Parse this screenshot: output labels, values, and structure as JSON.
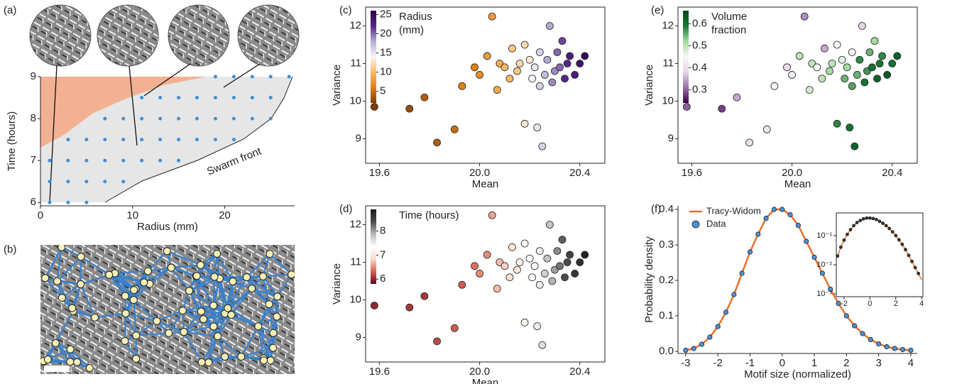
{
  "panel_labels": [
    "(a)",
    "(b)",
    "(c)",
    "(d)",
    "(e)",
    "(f)"
  ],
  "chart_data": [
    {
      "type": "scatter",
      "xlabel": "Radius (mm)",
      "ylabel": "Time (hours)",
      "annotation": "Swarm front",
      "xlim": [
        0,
        27.6
      ],
      "ylim": [
        5.92,
        9.0
      ],
      "xticks": [
        0,
        10,
        20
      ],
      "yticks": [
        6,
        7,
        8,
        9
      ],
      "color": "#3f8fd6",
      "x": [
        1,
        3,
        5,
        1,
        3,
        5,
        7,
        9,
        1,
        3,
        5,
        7,
        9,
        11,
        13,
        15,
        3,
        5,
        7,
        9,
        11,
        13,
        15,
        17,
        19,
        21,
        7,
        9,
        11,
        13,
        15,
        17,
        19,
        21,
        23,
        25,
        11,
        13,
        15,
        17,
        19,
        21,
        23,
        25,
        19,
        21,
        23,
        25,
        27
      ],
      "values": [
        6,
        6,
        6,
        6.5,
        6.5,
        6.5,
        6.5,
        6.5,
        7,
        7,
        7,
        7,
        7,
        7,
        7,
        7,
        7.5,
        7.5,
        7.5,
        7.5,
        7.5,
        7.5,
        7.5,
        7.5,
        7.5,
        7.5,
        8,
        8,
        8,
        8,
        8,
        8,
        8,
        8,
        8,
        8,
        8.5,
        8.5,
        8.5,
        8.5,
        8.5,
        8.5,
        8.5,
        8.5,
        9,
        9,
        9,
        9,
        9
      ]
    },
    {
      "type": "scatter",
      "xlabel": "Mean",
      "ylabel": "Variance",
      "xlim": [
        19.545,
        20.5
      ],
      "ylim": [
        8.35,
        12.5
      ],
      "xticks": [
        19.6,
        {
          "value": 20,
          "label": "20.0"
        },
        20.4
      ],
      "yticks": [
        9,
        10,
        11,
        12
      ],
      "x": [
        19.58,
        19.72,
        19.78,
        19.83,
        19.9,
        19.93,
        19.98,
        20.0,
        20.03,
        20.05,
        20.07,
        20.08,
        20.1,
        20.12,
        20.13,
        20.15,
        20.16,
        20.18,
        20.2,
        20.21,
        20.22,
        20.23,
        20.24,
        20.25,
        20.26,
        20.27,
        20.28,
        20.29,
        20.3,
        20.31,
        20.32,
        20.33,
        20.34,
        20.35,
        20.36,
        20.38,
        20.4,
        20.42,
        20.18,
        20.24
      ],
      "values": [
        9.85,
        9.8,
        10.1,
        8.9,
        9.25,
        10.4,
        10.9,
        10.7,
        11.2,
        12.25,
        10.3,
        11.0,
        10.9,
        10.6,
        11.4,
        10.8,
        11.0,
        9.4,
        11.1,
        10.6,
        10.9,
        9.3,
        11.3,
        8.8,
        10.7,
        11.1,
        12.0,
        10.5,
        10.8,
        11.3,
        10.9,
        11.6,
        10.6,
        11.0,
        11.2,
        10.7,
        11.0,
        11.2,
        11.5,
        10.4
      ],
      "color_values": [
        2,
        3,
        4,
        4,
        5,
        6,
        6,
        7,
        8,
        8,
        9,
        9,
        10,
        10,
        11,
        11,
        12,
        13,
        13,
        14,
        15,
        15,
        16,
        16,
        17,
        18,
        18,
        19,
        19,
        20,
        20,
        21,
        22,
        22,
        23,
        23,
        24,
        25,
        12,
        16
      ],
      "colormap": [
        "#7f3b08",
        "#e08214",
        "#fdb863",
        "#f7f7f7",
        "#b2abd2",
        "#542788",
        "#2d004b"
      ],
      "clim": [
        2,
        26
      ],
      "colorbar_ticks": [
        5,
        10,
        15,
        20,
        25
      ],
      "colorbar_label": [
        "Radius",
        "(mm)"
      ]
    },
    {
      "type": "scatter",
      "xlabel": "Mean",
      "ylabel": "Variance",
      "xlim": [
        19.545,
        20.5
      ],
      "ylim": [
        8.35,
        12.5
      ],
      "xticks": [
        19.6,
        {
          "value": 20,
          "label": "20.0"
        },
        20.4
      ],
      "yticks": [
        9,
        10,
        11,
        12
      ],
      "x": [
        19.58,
        19.72,
        19.78,
        19.83,
        19.9,
        19.93,
        19.98,
        20.0,
        20.03,
        20.05,
        20.07,
        20.08,
        20.1,
        20.12,
        20.13,
        20.15,
        20.16,
        20.18,
        20.2,
        20.21,
        20.22,
        20.23,
        20.24,
        20.25,
        20.26,
        20.27,
        20.28,
        20.29,
        20.3,
        20.31,
        20.32,
        20.33,
        20.34,
        20.35,
        20.36,
        20.38,
        20.4,
        20.42,
        20.18,
        20.24
      ],
      "values": [
        9.85,
        9.8,
        10.1,
        8.9,
        9.25,
        10.4,
        10.9,
        10.7,
        11.2,
        12.25,
        10.3,
        11.0,
        10.9,
        10.6,
        11.4,
        10.8,
        11.0,
        9.4,
        11.1,
        10.6,
        10.9,
        9.3,
        11.3,
        8.8,
        10.7,
        11.1,
        12.0,
        10.5,
        10.8,
        11.3,
        10.9,
        11.6,
        10.6,
        11.0,
        11.2,
        10.7,
        11.0,
        11.2,
        11.5,
        10.4
      ],
      "color_values": [
        6.0,
        6.1,
        6.1,
        6.2,
        6.3,
        6.3,
        6.4,
        6.5,
        6.5,
        6.6,
        6.7,
        6.7,
        6.8,
        6.9,
        7.0,
        7.0,
        7.1,
        7.2,
        7.3,
        7.3,
        7.4,
        7.5,
        7.5,
        7.6,
        7.7,
        7.8,
        7.8,
        7.9,
        8.0,
        8.1,
        8.2,
        8.3,
        8.4,
        8.4,
        8.5,
        8.6,
        8.7,
        8.8,
        7.2,
        7.5
      ],
      "colormap": [
        "#67001f",
        "#d6604d",
        "#fddbc7",
        "#ffffff",
        "#bababa",
        "#4d4d4d",
        "#1a1a1a"
      ],
      "clim": [
        5.8,
        8.9
      ],
      "colorbar_ticks": [
        6,
        7,
        8
      ],
      "colorbar_label": [
        "Time (hours)"
      ]
    },
    {
      "type": "scatter",
      "xlabel": "Mean",
      "ylabel": "Variance",
      "xlim": [
        19.545,
        20.5
      ],
      "ylim": [
        8.35,
        12.5
      ],
      "xticks": [
        19.6,
        {
          "value": 20,
          "label": "20.0"
        },
        20.4
      ],
      "yticks": [
        9,
        10,
        11,
        12
      ],
      "x": [
        19.58,
        19.72,
        19.78,
        19.83,
        19.9,
        19.93,
        19.98,
        20.0,
        20.03,
        20.05,
        20.07,
        20.08,
        20.1,
        20.12,
        20.13,
        20.15,
        20.16,
        20.18,
        20.2,
        20.21,
        20.22,
        20.23,
        20.24,
        20.25,
        20.26,
        20.27,
        20.28,
        20.29,
        20.3,
        20.31,
        20.32,
        20.33,
        20.34,
        20.35,
        20.36,
        20.38,
        20.4,
        20.42,
        20.18,
        20.24
      ],
      "values": [
        9.85,
        9.8,
        10.1,
        8.9,
        9.25,
        10.4,
        10.9,
        10.7,
        11.2,
        12.25,
        10.3,
        11.0,
        10.9,
        10.6,
        11.4,
        10.8,
        11.0,
        9.4,
        11.1,
        10.6,
        10.9,
        9.3,
        11.3,
        8.8,
        10.7,
        11.1,
        12.0,
        10.5,
        10.8,
        11.3,
        10.9,
        11.6,
        10.6,
        11.0,
        11.2,
        10.7,
        11.0,
        11.2,
        11.5,
        10.4
      ],
      "color_values": [
        0.3,
        0.28,
        0.35,
        0.4,
        0.42,
        0.45,
        0.4,
        0.46,
        0.5,
        0.33,
        0.48,
        0.5,
        0.45,
        0.5,
        0.35,
        0.52,
        0.5,
        0.58,
        0.47,
        0.55,
        0.52,
        0.6,
        0.44,
        0.62,
        0.55,
        0.58,
        0.38,
        0.6,
        0.57,
        0.55,
        0.6,
        0.52,
        0.62,
        0.6,
        0.58,
        0.63,
        0.6,
        0.62,
        0.45,
        0.56
      ],
      "colormap": [
        "#40004b",
        "#9970ab",
        "#e7d4e8",
        "#f7f7f7",
        "#a6dba0",
        "#1b7837",
        "#00441b"
      ],
      "clim": [
        0.24,
        0.66
      ],
      "colorbar_ticks": [
        0.3,
        0.4,
        0.5,
        0.6
      ],
      "colorbar_label": [
        "Volume",
        "fraction"
      ]
    },
    {
      "type": "line",
      "xlabel": "Motif size (normalized)",
      "ylabel": "Probability density",
      "legend": "upper left",
      "xlim": [
        -3.24,
        4.2
      ],
      "ylim": [
        -0.006,
        0.41
      ],
      "xticks": [
        -3,
        -2,
        -1,
        0,
        1,
        2,
        3,
        4
      ],
      "yticks": [
        {
          "value": 0,
          "label": "0.0"
        },
        0.1,
        0.2,
        0.3,
        0.4
      ],
      "series": [
        {
          "name": "Tracy-Widom",
          "color": "#e8702a",
          "mode": "line",
          "x": [
            -3,
            -2.75,
            -2.5,
            -2.25,
            -2,
            -1.75,
            -1.5,
            -1.25,
            -1,
            -0.75,
            -0.5,
            -0.25,
            0,
            0.25,
            0.5,
            0.75,
            1,
            1.25,
            1.5,
            1.75,
            2,
            2.25,
            2.5,
            2.75,
            3,
            3.25,
            3.5,
            3.75,
            4
          ],
          "values": [
            0.003,
            0.008,
            0.02,
            0.04,
            0.07,
            0.11,
            0.16,
            0.22,
            0.28,
            0.33,
            0.375,
            0.4,
            0.4,
            0.385,
            0.355,
            0.31,
            0.265,
            0.22,
            0.175,
            0.135,
            0.1,
            0.072,
            0.05,
            0.033,
            0.021,
            0.013,
            0.008,
            0.005,
            0.003
          ]
        },
        {
          "name": "Data",
          "color": "#4a90d9",
          "mode": "markers",
          "x": [
            -3,
            -2.75,
            -2.5,
            -2.25,
            -2,
            -1.75,
            -1.5,
            -1.25,
            -1,
            -0.75,
            -0.5,
            -0.25,
            0,
            0.25,
            0.5,
            0.75,
            1,
            1.25,
            1.5,
            1.75,
            2,
            2.25,
            2.5,
            2.75,
            3,
            3.25,
            3.5,
            3.75,
            4
          ],
          "values": [
            0.003,
            0.008,
            0.02,
            0.04,
            0.07,
            0.11,
            0.16,
            0.22,
            0.28,
            0.33,
            0.375,
            0.4,
            0.4,
            0.385,
            0.355,
            0.31,
            0.265,
            0.22,
            0.175,
            0.135,
            0.1,
            0.072,
            0.05,
            0.033,
            0.021,
            0.013,
            0.008,
            0.005,
            0.003
          ]
        }
      ]
    },
    {
      "type": "line",
      "log_y": true,
      "xlim": [
        -2.6,
        4.1
      ],
      "ylim": [
        0.0008,
        0.6
      ],
      "xticks": [
        -2,
        0,
        2,
        4
      ],
      "yticks": [
        {
          "value": 0.001,
          "label": "10⁻³"
        },
        {
          "value": 0.01,
          "label": "10⁻²"
        },
        {
          "value": 0.1,
          "label": "10⁻¹"
        }
      ],
      "series": [
        {
          "color": "#e8702a",
          "mode": "line",
          "x": [
            -2.5,
            -2.25,
            -2,
            -1.75,
            -1.5,
            -1.25,
            -1,
            -0.75,
            -0.5,
            -0.25,
            0,
            0.25,
            0.5,
            0.75,
            1,
            1.25,
            1.5,
            1.75,
            2,
            2.25,
            2.5,
            2.75,
            3,
            3.25,
            3.5,
            3.75,
            4
          ],
          "values": [
            0.02,
            0.04,
            0.07,
            0.11,
            0.16,
            0.22,
            0.28,
            0.33,
            0.375,
            0.4,
            0.4,
            0.385,
            0.355,
            0.31,
            0.265,
            0.22,
            0.175,
            0.135,
            0.1,
            0.072,
            0.05,
            0.033,
            0.021,
            0.013,
            0.008,
            0.005,
            0.003
          ]
        },
        {
          "color": "#333333",
          "mode": "markers",
          "x": [
            -2.5,
            -2.25,
            -2,
            -1.75,
            -1.5,
            -1.25,
            -1,
            -0.75,
            -0.5,
            -0.25,
            0,
            0.25,
            0.5,
            0.75,
            1,
            1.25,
            1.5,
            1.75,
            2,
            2.25,
            2.5,
            2.75,
            3,
            3.25,
            3.5,
            3.75
          ],
          "values": [
            0.02,
            0.04,
            0.07,
            0.11,
            0.16,
            0.22,
            0.28,
            0.33,
            0.375,
            0.4,
            0.4,
            0.385,
            0.355,
            0.31,
            0.265,
            0.22,
            0.175,
            0.135,
            0.1,
            0.072,
            0.05,
            0.033,
            0.021,
            0.013,
            0.008,
            0.005
          ]
        }
      ]
    }
  ]
}
